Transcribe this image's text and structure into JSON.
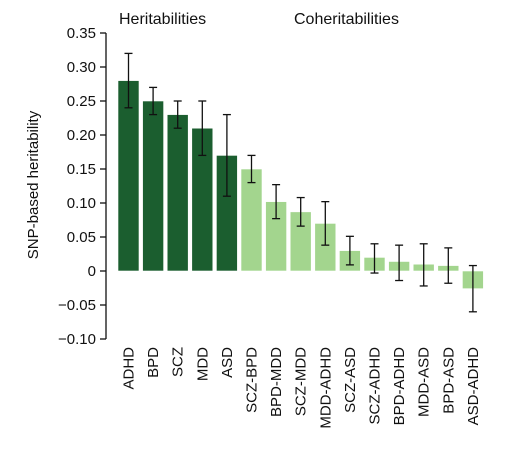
{
  "chart_data": {
    "type": "bar",
    "ylabel": "SNP-based heritability",
    "ylim": [
      -0.1,
      0.35
    ],
    "yticks": [
      0.35,
      0.3,
      0.25,
      0.2,
      0.15,
      0.1,
      0.05,
      0,
      -0.05,
      -0.1
    ],
    "ytick_labels": [
      "0.35",
      "0.30",
      "0.25",
      "0.20",
      "0.15",
      "0.10",
      "0.05",
      "0",
      "−0.05",
      "−0.10"
    ],
    "grid": false,
    "groups": [
      {
        "label": "Heritabilities",
        "color": "#1b5e2f",
        "categories": [
          "ADHD",
          "BPD",
          "SCZ",
          "MDD",
          "ASD"
        ],
        "values": [
          0.28,
          0.25,
          0.23,
          0.21,
          0.17
        ],
        "err_low": [
          0.24,
          0.23,
          0.21,
          0.17,
          0.11
        ],
        "err_high": [
          0.32,
          0.27,
          0.25,
          0.25,
          0.23
        ]
      },
      {
        "label": "Coheritabilities",
        "color": "#a3d58e",
        "categories": [
          "SCZ-BPD",
          "BPD-MDD",
          "SCZ-MDD",
          "MDD-ADHD",
          "SCZ-ASD",
          "SCZ-ADHD",
          "BPD-ADHD",
          "MDD-ASD",
          "BPD-ASD",
          "ASD-ADHD"
        ],
        "values": [
          0.15,
          0.102,
          0.087,
          0.07,
          0.03,
          0.02,
          0.014,
          0.01,
          0.008,
          -0.026
        ],
        "err_low": [
          0.13,
          0.077,
          0.066,
          0.038,
          0.009,
          -0.003,
          -0.014,
          -0.022,
          -0.018,
          -0.06
        ],
        "err_high": [
          0.17,
          0.127,
          0.108,
          0.102,
          0.051,
          0.04,
          0.038,
          0.04,
          0.034,
          0.008
        ]
      }
    ]
  }
}
